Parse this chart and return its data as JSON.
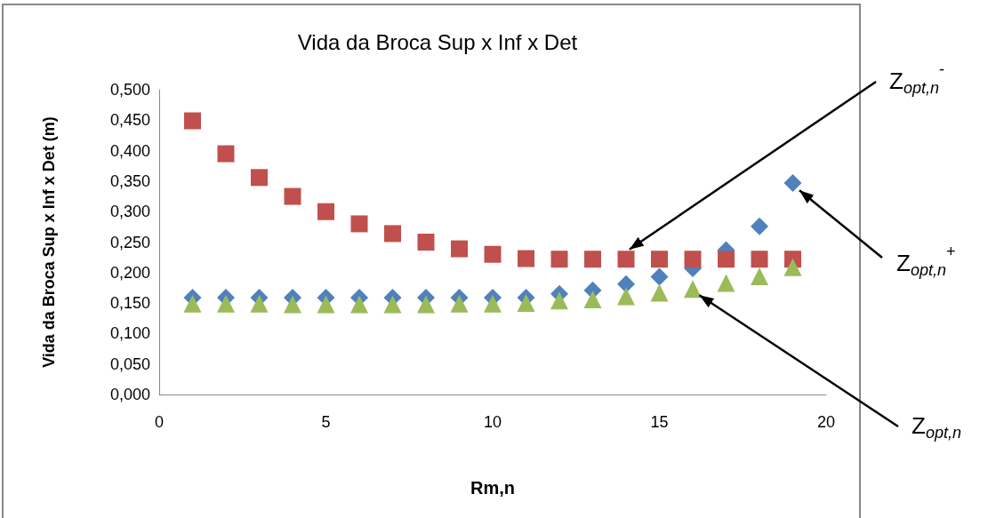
{
  "chart_data": {
    "type": "scatter",
    "title": "Vida da Broca Sup x Inf x Det",
    "xlabel": "Rm,n",
    "ylabel": "Vida da Broca Sup x Inf x Det (m)",
    "x": [
      1,
      2,
      3,
      4,
      5,
      6,
      7,
      8,
      9,
      10,
      11,
      12,
      13,
      14,
      15,
      16,
      17,
      18,
      19
    ],
    "series": [
      {
        "color": "#4f81bd",
        "marker": "diamond",
        "values": [
          0.159,
          0.159,
          0.159,
          0.159,
          0.159,
          0.159,
          0.159,
          0.159,
          0.159,
          0.159,
          0.159,
          0.165,
          0.171,
          0.181,
          0.193,
          0.207,
          0.237,
          0.276,
          0.347
        ]
      },
      {
        "color": "#c0504d",
        "marker": "square",
        "values": [
          0.449,
          0.395,
          0.356,
          0.325,
          0.3,
          0.28,
          0.264,
          0.25,
          0.239,
          0.23,
          0.223,
          0.222,
          0.222,
          0.222,
          0.222,
          0.222,
          0.222,
          0.222,
          0.222
        ]
      },
      {
        "color": "#9bbb59",
        "marker": "triangle",
        "values": [
          0.149,
          0.149,
          0.149,
          0.148,
          0.148,
          0.148,
          0.148,
          0.148,
          0.149,
          0.149,
          0.15,
          0.154,
          0.156,
          0.161,
          0.167,
          0.173,
          0.183,
          0.194,
          0.209
        ]
      }
    ],
    "xlim": [
      0,
      20
    ],
    "xticks": [
      0,
      5,
      10,
      15,
      20
    ],
    "ylim": [
      0,
      0.5
    ],
    "yticks": [
      {
        "value": 0,
        "label": "0,000"
      },
      {
        "value": 0.05,
        "label": "0,050"
      },
      {
        "value": 0.1,
        "label": "0,100"
      },
      {
        "value": 0.15,
        "label": "0,150"
      },
      {
        "value": 0.2,
        "label": "0,200"
      },
      {
        "value": 0.25,
        "label": "0,250"
      },
      {
        "value": 0.3,
        "label": "0,300"
      },
      {
        "value": 0.35,
        "label": "0,350"
      },
      {
        "value": 0.4,
        "label": "0,400"
      },
      {
        "value": 0.45,
        "label": "0,450"
      },
      {
        "value": 0.5,
        "label": "0,500"
      }
    ],
    "annotations": [
      {
        "text": "Z$_{opt,n}$$^{-}$",
        "x": 14.1,
        "y": 0.238
      },
      {
        "text": "Z$_{opt,n}$$^{+}$",
        "x": 19.2,
        "y": 0.335
      },
      {
        "text": "Z$_{opt,n}$",
        "x": 16.2,
        "y": 0.163
      }
    ]
  }
}
